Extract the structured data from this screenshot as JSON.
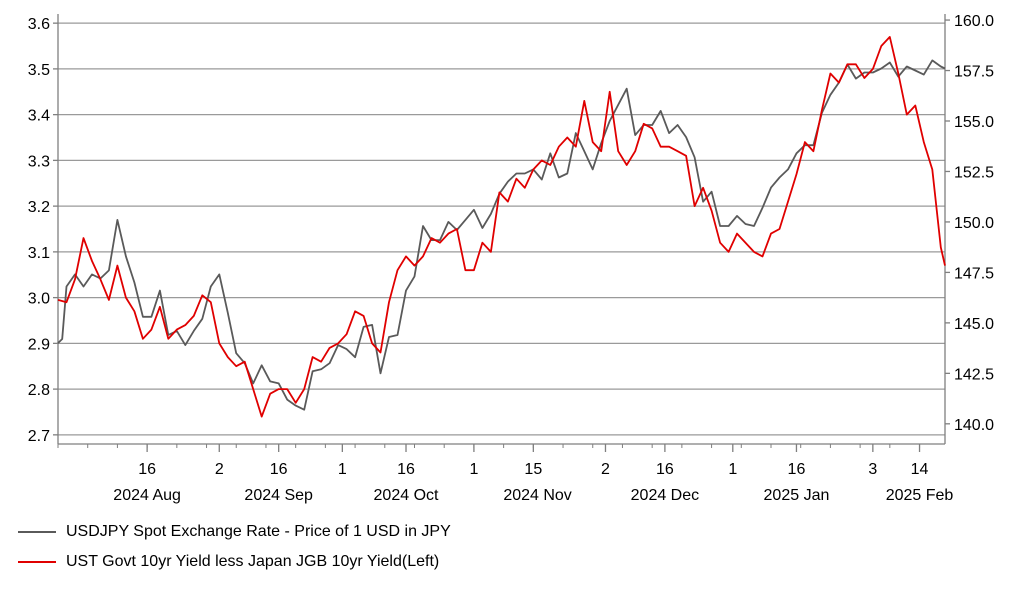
{
  "chart_data": {
    "type": "line",
    "title": "",
    "colors": {
      "usdjpy": "#5a5a5a",
      "spread": "#e00000",
      "grid": "#9a9a9a",
      "axis": "#7f7f7f"
    },
    "left_axis": {
      "ylim": [
        2.68,
        3.62
      ],
      "ticks": [
        "2.7",
        "2.8",
        "2.9",
        "3.0",
        "3.1",
        "3.2",
        "3.3",
        "3.4",
        "3.5",
        "3.6"
      ]
    },
    "right_axis": {
      "ylim": [
        139.0,
        160.3
      ],
      "ticks": [
        "140.0",
        "142.5",
        "145.0",
        "147.5",
        "150.0",
        "152.5",
        "155.0",
        "157.5",
        "160.0"
      ]
    },
    "x_range": [
      "2024-07-26",
      "2025-02-20"
    ],
    "day_ticks": [
      {
        "date": "2024-08-16",
        "label": "16"
      },
      {
        "date": "2024-09-02",
        "label": "2"
      },
      {
        "date": "2024-09-16",
        "label": "16"
      },
      {
        "date": "2024-10-01",
        "label": "1"
      },
      {
        "date": "2024-10-16",
        "label": "16"
      },
      {
        "date": "2024-11-01",
        "label": "1"
      },
      {
        "date": "2024-11-15",
        "label": "15"
      },
      {
        "date": "2024-12-02",
        "label": "2"
      },
      {
        "date": "2024-12-16",
        "label": "16"
      },
      {
        "date": "2025-01-01",
        "label": "1"
      },
      {
        "date": "2025-01-16",
        "label": "16"
      },
      {
        "date": "2025-02-03",
        "label": "3"
      },
      {
        "date": "2025-02-14",
        "label": "14"
      }
    ],
    "month_labels": [
      {
        "date": "2024-08-16",
        "label": "2024 Aug"
      },
      {
        "date": "2024-09-16",
        "label": "2024 Sep"
      },
      {
        "date": "2024-10-16",
        "label": "2024 Oct"
      },
      {
        "date": "2024-11-16",
        "label": "2024 Nov"
      },
      {
        "date": "2024-12-16",
        "label": "2024 Dec"
      },
      {
        "date": "2025-01-16",
        "label": "2025 Jan"
      },
      {
        "date": "2025-02-14",
        "label": "2025 Feb"
      }
    ],
    "series": [
      {
        "name": "USDJPY Spot Exchange Rate - Price of 1 USD in JPY",
        "key": "usdjpy",
        "axis": "right",
        "points": [
          [
            "2024-07-26",
            144.0
          ],
          [
            "2024-07-27",
            144.2
          ],
          [
            "2024-07-28",
            146.8
          ],
          [
            "2024-07-30",
            147.4
          ],
          [
            "2024-08-01",
            146.8
          ],
          [
            "2024-08-03",
            147.4
          ],
          [
            "2024-08-05",
            147.2
          ],
          [
            "2024-08-07",
            147.6
          ],
          [
            "2024-08-09",
            150.1
          ],
          [
            "2024-08-11",
            148.3
          ],
          [
            "2024-08-13",
            147.0
          ],
          [
            "2024-08-15",
            145.3
          ],
          [
            "2024-08-17",
            145.3
          ],
          [
            "2024-08-19",
            146.6
          ],
          [
            "2024-08-21",
            144.4
          ],
          [
            "2024-08-23",
            144.6
          ],
          [
            "2024-08-25",
            143.9
          ],
          [
            "2024-08-27",
            144.6
          ],
          [
            "2024-08-29",
            145.2
          ],
          [
            "2024-08-31",
            146.8
          ],
          [
            "2024-09-02",
            147.4
          ],
          [
            "2024-09-04",
            145.5
          ],
          [
            "2024-09-06",
            143.5
          ],
          [
            "2024-09-08",
            143.0
          ],
          [
            "2024-09-10",
            142.0
          ],
          [
            "2024-09-12",
            142.9
          ],
          [
            "2024-09-14",
            142.1
          ],
          [
            "2024-09-16",
            142.0
          ],
          [
            "2024-09-18",
            141.2
          ],
          [
            "2024-09-20",
            140.9
          ],
          [
            "2024-09-22",
            140.7
          ],
          [
            "2024-09-24",
            142.6
          ],
          [
            "2024-09-26",
            142.7
          ],
          [
            "2024-09-28",
            143.0
          ],
          [
            "2024-09-30",
            143.9
          ],
          [
            "2024-10-02",
            143.7
          ],
          [
            "2024-10-04",
            143.3
          ],
          [
            "2024-10-06",
            144.8
          ],
          [
            "2024-10-08",
            144.9
          ],
          [
            "2024-10-10",
            142.5
          ],
          [
            "2024-10-12",
            144.3
          ],
          [
            "2024-10-14",
            144.4
          ],
          [
            "2024-10-16",
            146.6
          ],
          [
            "2024-10-18",
            147.3
          ],
          [
            "2024-10-20",
            149.8
          ],
          [
            "2024-10-22",
            149.1
          ],
          [
            "2024-10-24",
            149.1
          ],
          [
            "2024-10-26",
            150.0
          ],
          [
            "2024-10-28",
            149.6
          ],
          [
            "2024-10-30",
            150.1
          ],
          [
            "2024-11-01",
            150.6
          ],
          [
            "2024-11-03",
            149.7
          ],
          [
            "2024-11-05",
            150.4
          ],
          [
            "2024-11-07",
            151.4
          ],
          [
            "2024-11-09",
            152.0
          ],
          [
            "2024-11-11",
            152.4
          ],
          [
            "2024-11-13",
            152.4
          ],
          [
            "2024-11-15",
            152.6
          ],
          [
            "2024-11-17",
            152.1
          ],
          [
            "2024-11-19",
            153.4
          ],
          [
            "2024-11-21",
            152.2
          ],
          [
            "2024-11-23",
            152.4
          ],
          [
            "2024-11-25",
            154.4
          ],
          [
            "2024-11-27",
            153.5
          ],
          [
            "2024-11-29",
            152.6
          ],
          [
            "2024-12-01",
            153.9
          ],
          [
            "2024-12-03",
            155.0
          ],
          [
            "2024-12-05",
            155.8
          ],
          [
            "2024-12-07",
            156.6
          ],
          [
            "2024-12-09",
            154.3
          ],
          [
            "2024-12-11",
            154.8
          ],
          [
            "2024-12-13",
            154.8
          ],
          [
            "2024-12-15",
            155.5
          ],
          [
            "2024-12-17",
            154.4
          ],
          [
            "2024-12-19",
            154.8
          ],
          [
            "2024-12-21",
            154.2
          ],
          [
            "2024-12-23",
            153.2
          ],
          [
            "2024-12-25",
            151.0
          ],
          [
            "2024-12-27",
            151.5
          ],
          [
            "2024-12-29",
            149.8
          ],
          [
            "2024-12-31",
            149.8
          ],
          [
            "2025-01-02",
            150.3
          ],
          [
            "2025-01-04",
            149.9
          ],
          [
            "2025-01-06",
            149.8
          ],
          [
            "2025-01-08",
            150.7
          ],
          [
            "2025-01-10",
            151.7
          ],
          [
            "2025-01-12",
            152.2
          ],
          [
            "2025-01-14",
            152.6
          ],
          [
            "2025-01-16",
            153.4
          ],
          [
            "2025-01-18",
            153.8
          ],
          [
            "2025-01-20",
            153.8
          ],
          [
            "2025-01-22",
            155.4
          ],
          [
            "2025-01-24",
            156.3
          ],
          [
            "2025-01-26",
            156.9
          ],
          [
            "2025-01-28",
            157.8
          ],
          [
            "2025-01-30",
            157.1
          ],
          [
            "2025-02-01",
            157.4
          ],
          [
            "2025-02-03",
            157.4
          ],
          [
            "2025-02-05",
            157.6
          ],
          [
            "2025-02-07",
            157.9
          ],
          [
            "2025-02-09",
            157.2
          ],
          [
            "2025-02-11",
            157.7
          ],
          [
            "2025-02-13",
            157.5
          ],
          [
            "2025-02-15",
            157.3
          ],
          [
            "2025-02-17",
            158.0
          ],
          [
            "2025-02-19",
            157.7
          ],
          [
            "2025-02-20",
            157.6
          ]
        ]
      },
      {
        "name": "UST Govt 10yr Yield less Japan JGB 10yr Yield(Left)",
        "key": "spread",
        "axis": "left",
        "points": [
          [
            "2024-07-26",
            2.995
          ],
          [
            "2024-07-28",
            2.99
          ],
          [
            "2024-07-30",
            3.04
          ],
          [
            "2024-08-01",
            3.13
          ],
          [
            "2024-08-03",
            3.08
          ],
          [
            "2024-08-05",
            3.04
          ],
          [
            "2024-08-07",
            2.995
          ],
          [
            "2024-08-09",
            3.07
          ],
          [
            "2024-08-11",
            3.0
          ],
          [
            "2024-08-13",
            2.97
          ],
          [
            "2024-08-15",
            2.91
          ],
          [
            "2024-08-17",
            2.93
          ],
          [
            "2024-08-19",
            2.98
          ],
          [
            "2024-08-21",
            2.91
          ],
          [
            "2024-08-23",
            2.93
          ],
          [
            "2024-08-25",
            2.94
          ],
          [
            "2024-08-27",
            2.96
          ],
          [
            "2024-08-29",
            3.005
          ],
          [
            "2024-08-31",
            2.99
          ],
          [
            "2024-09-02",
            2.9
          ],
          [
            "2024-09-04",
            2.87
          ],
          [
            "2024-09-06",
            2.85
          ],
          [
            "2024-09-08",
            2.86
          ],
          [
            "2024-09-10",
            2.8
          ],
          [
            "2024-09-12",
            2.74
          ],
          [
            "2024-09-14",
            2.79
          ],
          [
            "2024-09-16",
            2.8
          ],
          [
            "2024-09-18",
            2.8
          ],
          [
            "2024-09-20",
            2.77
          ],
          [
            "2024-09-22",
            2.8
          ],
          [
            "2024-09-24",
            2.87
          ],
          [
            "2024-09-26",
            2.86
          ],
          [
            "2024-09-28",
            2.89
          ],
          [
            "2024-09-30",
            2.9
          ],
          [
            "2024-10-02",
            2.92
          ],
          [
            "2024-10-04",
            2.97
          ],
          [
            "2024-10-06",
            2.96
          ],
          [
            "2024-10-08",
            2.9
          ],
          [
            "2024-10-10",
            2.88
          ],
          [
            "2024-10-12",
            2.99
          ],
          [
            "2024-10-14",
            3.06
          ],
          [
            "2024-10-16",
            3.09
          ],
          [
            "2024-10-18",
            3.07
          ],
          [
            "2024-10-20",
            3.09
          ],
          [
            "2024-10-22",
            3.13
          ],
          [
            "2024-10-24",
            3.12
          ],
          [
            "2024-10-26",
            3.14
          ],
          [
            "2024-10-28",
            3.15
          ],
          [
            "2024-10-30",
            3.06
          ],
          [
            "2024-11-01",
            3.06
          ],
          [
            "2024-11-03",
            3.12
          ],
          [
            "2024-11-05",
            3.1
          ],
          [
            "2024-11-07",
            3.23
          ],
          [
            "2024-11-09",
            3.21
          ],
          [
            "2024-11-11",
            3.26
          ],
          [
            "2024-11-13",
            3.24
          ],
          [
            "2024-11-15",
            3.28
          ],
          [
            "2024-11-17",
            3.3
          ],
          [
            "2024-11-19",
            3.29
          ],
          [
            "2024-11-21",
            3.33
          ],
          [
            "2024-11-23",
            3.35
          ],
          [
            "2024-11-25",
            3.33
          ],
          [
            "2024-11-27",
            3.43
          ],
          [
            "2024-11-29",
            3.34
          ],
          [
            "2024-12-01",
            3.32
          ],
          [
            "2024-12-03",
            3.45
          ],
          [
            "2024-12-05",
            3.32
          ],
          [
            "2024-12-07",
            3.29
          ],
          [
            "2024-12-09",
            3.32
          ],
          [
            "2024-12-11",
            3.38
          ],
          [
            "2024-12-13",
            3.37
          ],
          [
            "2024-12-15",
            3.33
          ],
          [
            "2024-12-17",
            3.33
          ],
          [
            "2024-12-19",
            3.32
          ],
          [
            "2024-12-21",
            3.31
          ],
          [
            "2024-12-23",
            3.2
          ],
          [
            "2024-12-25",
            3.24
          ],
          [
            "2024-12-27",
            3.19
          ],
          [
            "2024-12-29",
            3.12
          ],
          [
            "2024-12-31",
            3.1
          ],
          [
            "2025-01-02",
            3.14
          ],
          [
            "2025-01-04",
            3.12
          ],
          [
            "2025-01-06",
            3.1
          ],
          [
            "2025-01-08",
            3.09
          ],
          [
            "2025-01-10",
            3.14
          ],
          [
            "2025-01-12",
            3.15
          ],
          [
            "2025-01-14",
            3.21
          ],
          [
            "2025-01-16",
            3.27
          ],
          [
            "2025-01-18",
            3.34
          ],
          [
            "2025-01-20",
            3.32
          ],
          [
            "2025-01-22",
            3.41
          ],
          [
            "2025-01-24",
            3.49
          ],
          [
            "2025-01-26",
            3.47
          ],
          [
            "2025-01-28",
            3.51
          ],
          [
            "2025-01-30",
            3.51
          ],
          [
            "2025-02-01",
            3.48
          ],
          [
            "2025-02-03",
            3.5
          ],
          [
            "2025-02-05",
            3.55
          ],
          [
            "2025-02-07",
            3.57
          ],
          [
            "2025-02-09",
            3.49
          ],
          [
            "2025-02-11",
            3.4
          ],
          [
            "2025-02-13",
            3.42
          ],
          [
            "2025-02-15",
            3.34
          ],
          [
            "2025-02-17",
            3.28
          ],
          [
            "2025-02-19",
            3.11
          ],
          [
            "2025-02-20",
            3.07
          ]
        ]
      }
    ],
    "legend_position": "bottom-left",
    "grid": true
  }
}
